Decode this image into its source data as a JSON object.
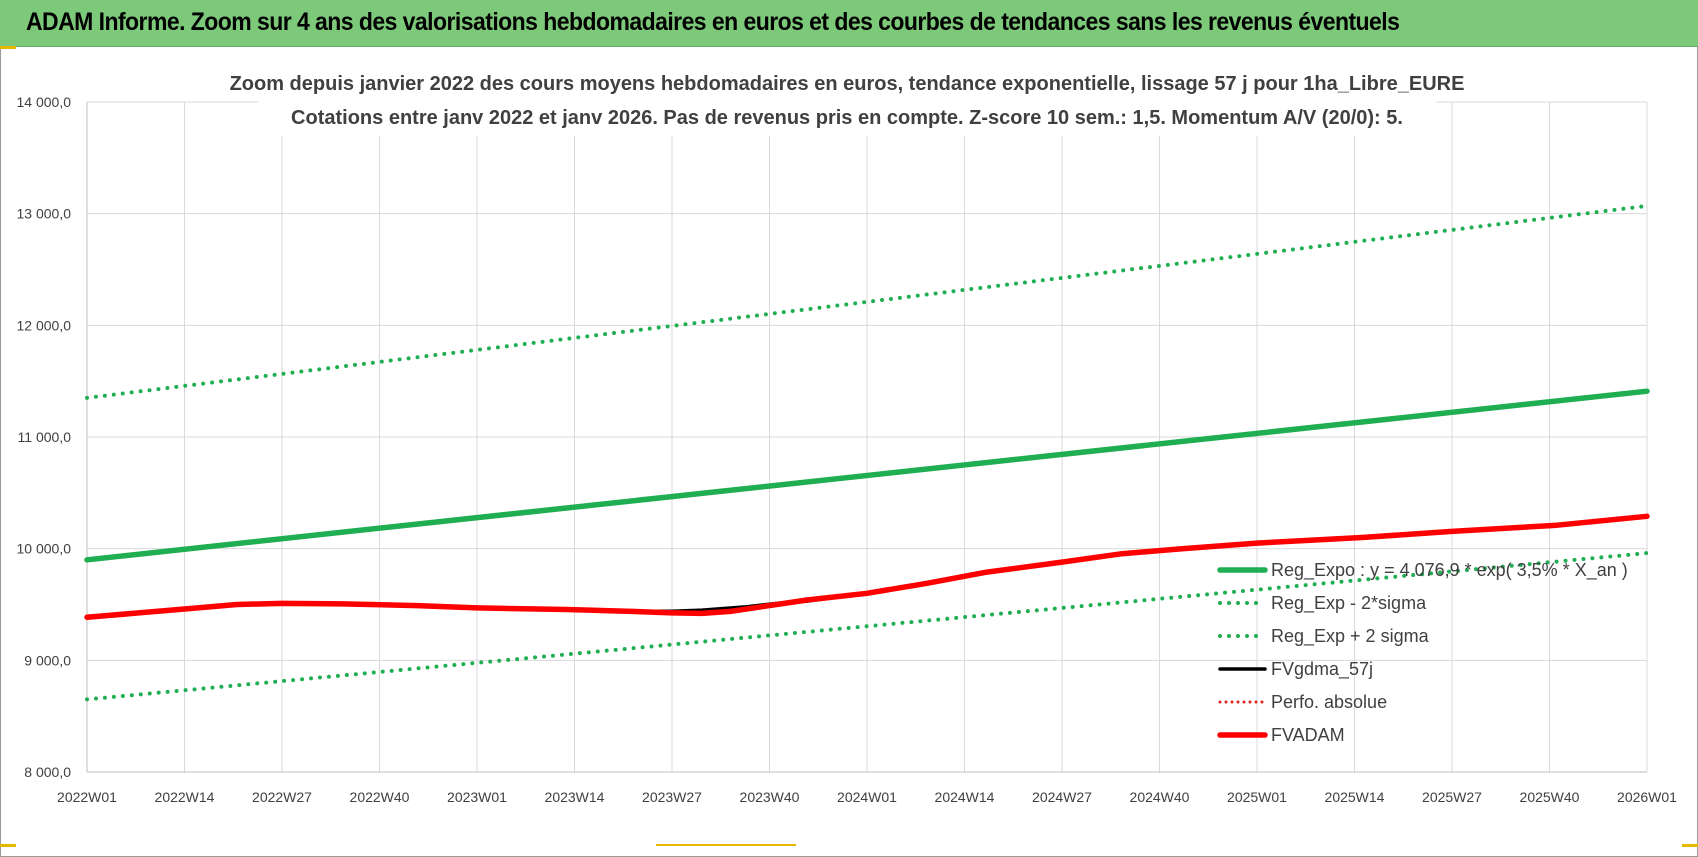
{
  "header": {
    "banner_title": "ADAM Informe. Zoom sur 4 ans des valorisations hebdomadaires en euros et des courbes de tendances sans les revenus éventuels",
    "banner_color": "#7dc97a"
  },
  "chart_data": {
    "type": "line",
    "title_line1": "Zoom depuis janvier 2022 des cours moyens hebdomadaires en euros, tendance exponentielle, lissage 57 j pour 1ha_Libre_EURE",
    "title_line2": "Cotations entre janv 2022 et janv 2026. Pas de revenus pris en compte. Z-score 10 sem.: 1,5. Momentum A/V (20/0): 5.",
    "x_tick_labels": [
      "2022W01",
      "2022W14",
      "2022W27",
      "2022W40",
      "2023W01",
      "2023W14",
      "2023W27",
      "2023W40",
      "2024W01",
      "2024W14",
      "2024W27",
      "2024W40",
      "2025W01",
      "2025W14",
      "2025W27",
      "2025W40",
      "2026W01"
    ],
    "y_tick_labels": [
      "8 000,0",
      "9 000,0",
      "10 000,0",
      "11 000,0",
      "12 000,0",
      "13 000,0",
      "14 000,0"
    ],
    "ylim": [
      8000,
      14000
    ],
    "y_ticks": [
      8000,
      9000,
      10000,
      11000,
      12000,
      13000,
      14000
    ],
    "x_range_weeks": [
      0,
      208
    ],
    "legend_position": "bottom-right",
    "grid": true,
    "series": [
      {
        "name": "Reg_Expo : y = 4 076,9 * exp( 3,5% * X_an )",
        "color": "#1fae52",
        "style": "solid",
        "width": "thick",
        "points": [
          [
            0,
            9900
          ],
          [
            208,
            11410
          ]
        ]
      },
      {
        "name": "Reg_Exp - 2*sigma",
        "color": "#1fae52",
        "style": "dotted",
        "width": "medium",
        "points": [
          [
            0,
            8650
          ],
          [
            208,
            9960
          ]
        ]
      },
      {
        "name": "Reg_Exp + 2 sigma",
        "color": "#1fae52",
        "style": "dotted",
        "width": "medium",
        "points": [
          [
            0,
            11350
          ],
          [
            208,
            13070
          ]
        ]
      },
      {
        "name": "FVgdma_57j",
        "color": "#000000",
        "style": "solid",
        "width": "medium",
        "points": [
          [
            0,
            9385
          ],
          [
            13,
            9460
          ],
          [
            20,
            9500
          ],
          [
            26,
            9510
          ],
          [
            34,
            9505
          ],
          [
            44,
            9490
          ],
          [
            52,
            9470
          ],
          [
            64,
            9455
          ],
          [
            72,
            9440
          ],
          [
            78,
            9440
          ],
          [
            82,
            9450
          ],
          [
            88,
            9480
          ],
          [
            92,
            9510
          ],
          [
            96,
            9530
          ],
          [
            104,
            9600
          ],
          [
            112,
            9690
          ],
          [
            120,
            9790
          ],
          [
            130,
            9880
          ],
          [
            138,
            9950
          ],
          [
            146,
            10000
          ],
          [
            156,
            10050
          ],
          [
            170,
            10100
          ],
          [
            182,
            10155
          ],
          [
            196,
            10210
          ],
          [
            208,
            10290
          ]
        ]
      },
      {
        "name": "Perfo. absolue",
        "color": "#e02020",
        "style": "dotted",
        "width": "medium",
        "points": []
      },
      {
        "name": "FVADAM",
        "color": "#ff0000",
        "style": "solid",
        "width": "thick",
        "points": [
          [
            0,
            9385
          ],
          [
            13,
            9460
          ],
          [
            20,
            9500
          ],
          [
            26,
            9510
          ],
          [
            34,
            9505
          ],
          [
            44,
            9490
          ],
          [
            52,
            9470
          ],
          [
            64,
            9455
          ],
          [
            72,
            9440
          ],
          [
            78,
            9425
          ],
          [
            82,
            9420
          ],
          [
            86,
            9440
          ],
          [
            90,
            9480
          ],
          [
            96,
            9540
          ],
          [
            104,
            9600
          ],
          [
            112,
            9690
          ],
          [
            120,
            9790
          ],
          [
            130,
            9880
          ],
          [
            138,
            9955
          ],
          [
            146,
            10000
          ],
          [
            156,
            10050
          ],
          [
            170,
            10100
          ],
          [
            182,
            10155
          ],
          [
            196,
            10210
          ],
          [
            208,
            10290
          ]
        ]
      }
    ]
  }
}
